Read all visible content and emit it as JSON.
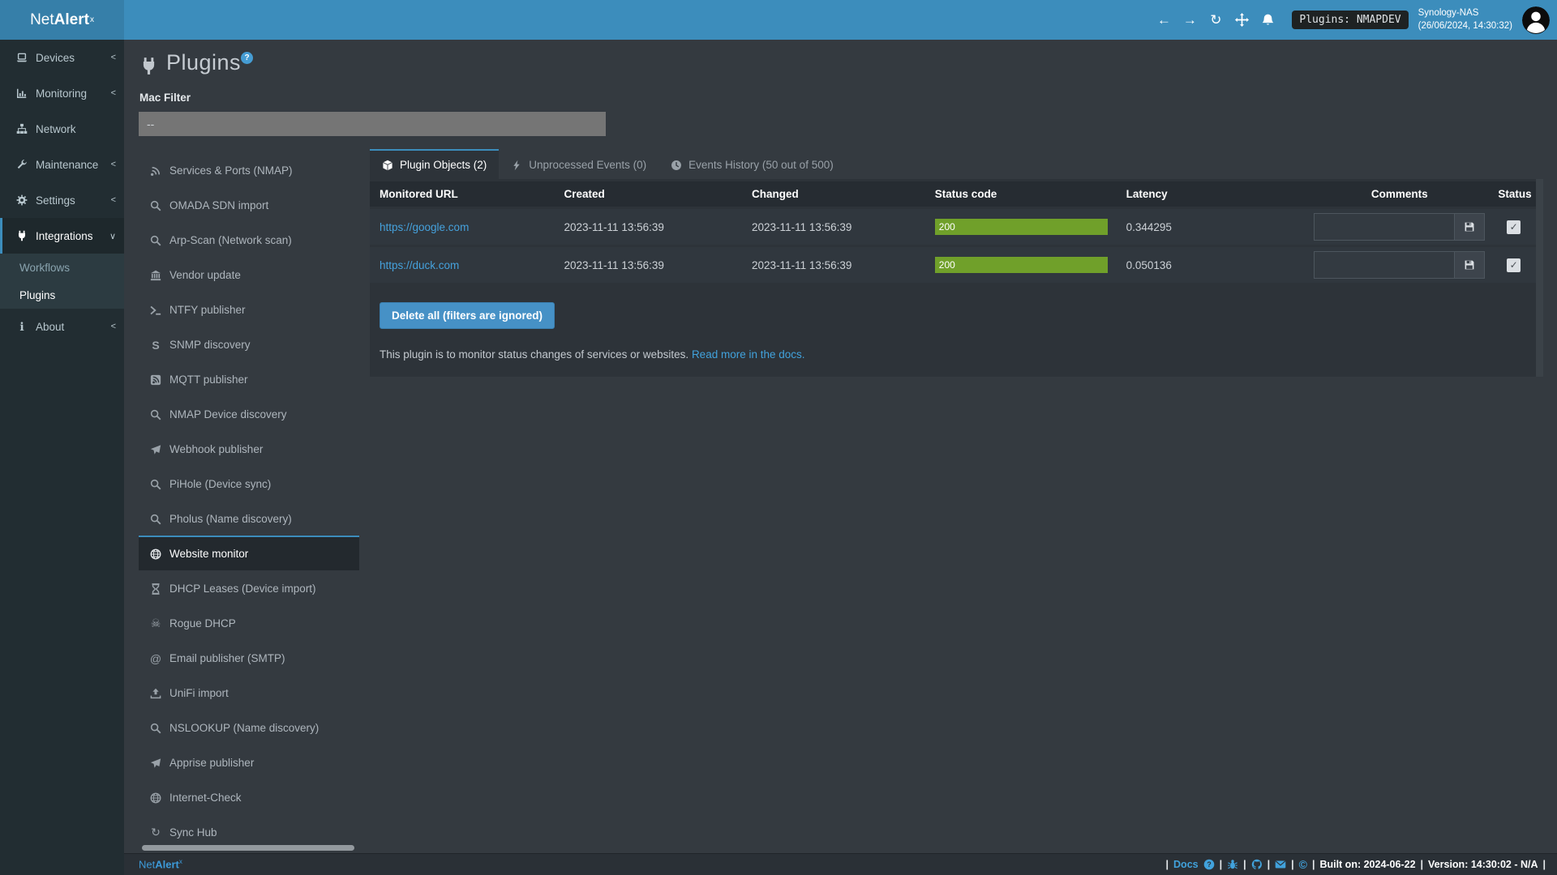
{
  "navbar": {
    "brand": {
      "prefix": "Net",
      "bold": "Alert",
      "sup": "x"
    },
    "icons": [
      "arrow-left",
      "arrow-right",
      "refresh",
      "move",
      "bell"
    ],
    "badge": "Plugins: NMAPDEV",
    "user": {
      "name": "Synology-NAS",
      "timestamp": "(26/06/2024, 14:30:32)"
    }
  },
  "sidebar": {
    "items": [
      {
        "label": "Devices",
        "icon": "laptop",
        "chevron": "<"
      },
      {
        "label": "Monitoring",
        "icon": "chart",
        "chevron": "<"
      },
      {
        "label": "Network",
        "icon": "sitemap",
        "chevron": ""
      },
      {
        "label": "Maintenance",
        "icon": "wrench",
        "chevron": "<"
      },
      {
        "label": "Settings",
        "icon": "gear",
        "chevron": "<"
      },
      {
        "label": "Integrations",
        "icon": "plug",
        "chevron": "∨"
      }
    ],
    "submenu": [
      {
        "label": "Workflows"
      },
      {
        "label": "Plugins"
      }
    ],
    "about": {
      "label": "About",
      "icon": "info",
      "chevron": "<"
    }
  },
  "page": {
    "title": "Plugins",
    "title_icon": "plug",
    "help": "?",
    "mac_filter": {
      "label": "Mac Filter",
      "value": "--"
    }
  },
  "plugin_list": {
    "items": [
      {
        "label": "Services & Ports (NMAP)",
        "icon": "signal"
      },
      {
        "label": "OMADA SDN import",
        "icon": "magnifier"
      },
      {
        "label": "Arp-Scan (Network scan)",
        "icon": "magnifier"
      },
      {
        "label": "Vendor update",
        "icon": "bank"
      },
      {
        "label": "NTFY publisher",
        "icon": "terminal"
      },
      {
        "label": "SNMP discovery",
        "icon": "letter-s"
      },
      {
        "label": "MQTT publisher",
        "icon": "rss-square"
      },
      {
        "label": "NMAP Device discovery",
        "icon": "magnifier"
      },
      {
        "label": "Webhook publisher",
        "icon": "send"
      },
      {
        "label": "PiHole (Device sync)",
        "icon": "magnifier"
      },
      {
        "label": "Pholus (Name discovery)",
        "icon": "magnifier"
      },
      {
        "label": "Website monitor",
        "icon": "globe"
      },
      {
        "label": "DHCP Leases (Device import)",
        "icon": "hourglass"
      },
      {
        "label": "Rogue DHCP",
        "icon": "skull"
      },
      {
        "label": "Email publisher (SMTP)",
        "icon": "at-sign"
      },
      {
        "label": "UniFi import",
        "icon": "upload"
      },
      {
        "label": "NSLOOKUP (Name discovery)",
        "icon": "magnifier"
      },
      {
        "label": "Apprise publisher",
        "icon": "send"
      },
      {
        "label": "Internet-Check",
        "icon": "globe"
      },
      {
        "label": "Sync Hub",
        "icon": "sync"
      }
    ]
  },
  "tabs": [
    {
      "label": "Plugin Objects (2)",
      "icon": "cube"
    },
    {
      "label": "Unprocessed Events (0)",
      "icon": "bolt"
    },
    {
      "label": "Events History (50 out of 500)",
      "icon": "clock"
    }
  ],
  "table": {
    "headers": [
      "Monitored URL",
      "Created",
      "Changed",
      "Status code",
      "Latency",
      "Comments",
      "Status"
    ],
    "rows": [
      {
        "url": "https://google.com",
        "created": "2023-11-11 13:56:39",
        "changed": "2023-11-11 13:56:39",
        "status_code": "200",
        "latency": "0.344295",
        "comment": "",
        "checked": true
      },
      {
        "url": "https://duck.com",
        "created": "2023-11-11 13:56:39",
        "changed": "2023-11-11 13:56:39",
        "status_code": "200",
        "latency": "0.050136",
        "comment": "",
        "checked": true
      }
    ]
  },
  "actions": {
    "delete_all": "Delete all (filters are ignored)"
  },
  "description": {
    "text": "This plugin is to monitor status changes of services or websites.",
    "link": "Read more in the docs."
  },
  "footer": {
    "brand": {
      "prefix": "Net",
      "bold": "Alert",
      "sup": "x"
    },
    "docs": "Docs",
    "icons": [
      "question-circle",
      "bug",
      "github",
      "envelope",
      "copyright"
    ],
    "built": "Built on: 2024-06-22",
    "version": "Version: 14:30:02 - N/A"
  },
  "colors": {
    "accent": "#3c8dbc",
    "status_green": "#70a02a",
    "link_blue": "#45a1dc"
  }
}
